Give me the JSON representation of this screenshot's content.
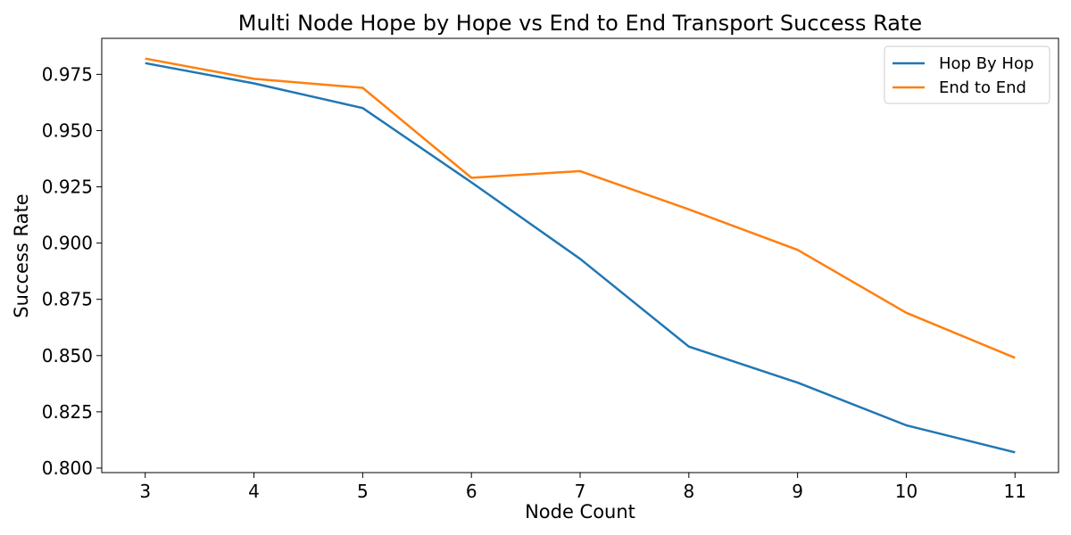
{
  "chart_data": {
    "type": "line",
    "title": "Multi Node Hope by Hope vs End to End Transport Success Rate",
    "xlabel": "Node Count",
    "ylabel": "Success Rate",
    "x": [
      3,
      4,
      5,
      6,
      7,
      8,
      9,
      10,
      11
    ],
    "xlim": [
      2.6,
      11.4
    ],
    "ylim": [
      0.798,
      0.991
    ],
    "yticks": [
      0.8,
      0.825,
      0.85,
      0.875,
      0.9,
      0.925,
      0.95,
      0.975
    ],
    "ytick_labels": [
      "0.800",
      "0.825",
      "0.850",
      "0.875",
      "0.900",
      "0.925",
      "0.950",
      "0.975"
    ],
    "xtick_labels": [
      "3",
      "4",
      "5",
      "6",
      "7",
      "8",
      "9",
      "10",
      "11"
    ],
    "grid": false,
    "legend_position": "top-right",
    "series": [
      {
        "name": "Hop By Hop",
        "color": "#1f77b4",
        "values": [
          0.98,
          0.971,
          0.96,
          0.927,
          0.893,
          0.854,
          0.838,
          0.819,
          0.807
        ]
      },
      {
        "name": "End to End",
        "color": "#ff7f0e",
        "values": [
          0.982,
          0.973,
          0.969,
          0.929,
          0.932,
          0.915,
          0.897,
          0.869,
          0.849
        ]
      }
    ]
  }
}
